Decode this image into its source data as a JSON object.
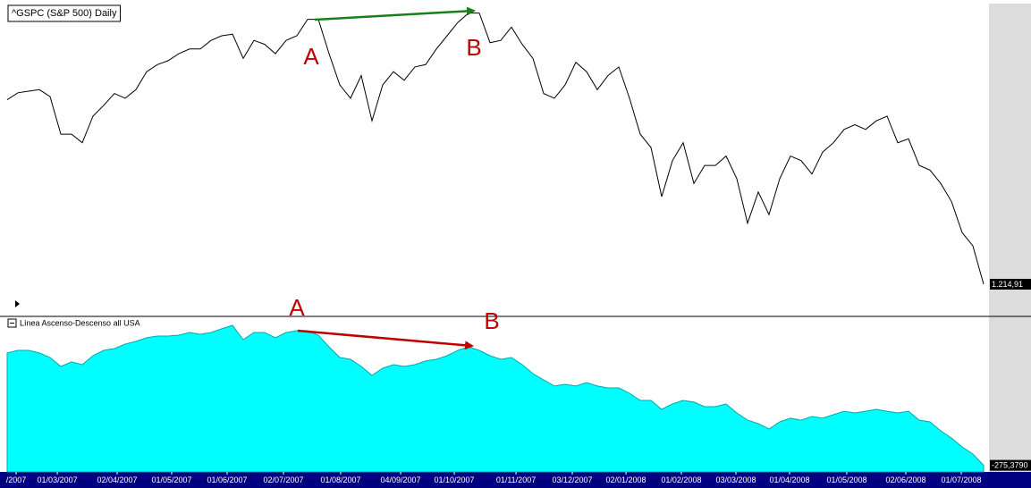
{
  "chart_data": [
    {
      "type": "line",
      "title": "^GSPC (S&P 500) Daily",
      "color": "#000000",
      "xlim": [
        -0.67,
        91.42
      ],
      "ylim": [
        1176,
        1573
      ],
      "values": [
        1451,
        1460,
        1462,
        1464,
        1455,
        1407,
        1407,
        1396,
        1430,
        1444,
        1459,
        1453,
        1464,
        1487,
        1496,
        1501,
        1510,
        1516,
        1516,
        1527,
        1533,
        1535,
        1504,
        1527,
        1522,
        1510,
        1527,
        1533,
        1554,
        1554,
        1510,
        1470,
        1453,
        1482,
        1424,
        1470,
        1487,
        1476,
        1493,
        1496,
        1516,
        1533,
        1550,
        1562,
        1562,
        1524,
        1527,
        1544,
        1522,
        1504,
        1459,
        1453,
        1470,
        1499,
        1487,
        1464,
        1482,
        1493,
        1453,
        1407,
        1390,
        1327,
        1373,
        1396,
        1344,
        1367,
        1367,
        1379,
        1350,
        1293,
        1333,
        1304,
        1350,
        1379,
        1373,
        1356,
        1384,
        1396,
        1413,
        1419,
        1413,
        1424,
        1430,
        1396,
        1401,
        1367,
        1361,
        1344,
        1321,
        1281,
        1264,
        1214.91
      ],
      "value_labels": [
        null,
        null,
        null,
        null,
        null,
        null,
        null,
        null,
        null,
        null,
        null,
        null,
        null,
        null,
        null,
        null,
        null,
        null,
        null,
        null,
        null,
        null,
        null,
        null,
        null,
        null,
        null,
        null,
        null,
        null,
        null,
        null,
        null,
        null,
        null,
        null,
        null,
        null,
        null,
        null,
        null,
        null,
        null,
        null,
        null,
        null,
        null,
        null,
        null,
        null,
        null,
        null,
        null,
        null,
        null,
        null,
        null,
        null,
        null,
        null,
        null,
        null,
        null,
        null,
        null,
        null,
        null,
        null,
        null,
        null,
        null,
        null,
        null,
        null,
        null,
        null,
        null,
        null,
        null,
        null,
        null,
        null,
        null,
        null,
        null,
        null,
        null,
        null,
        null,
        null,
        null,
        "1.214,91"
      ],
      "annotations": [
        {
          "text": "A",
          "color": "#c00000"
        },
        {
          "text": "B",
          "color": "#c00000"
        }
      ],
      "arrow_color": "#1a7f1a"
    },
    {
      "type": "area",
      "title": "Línea Ascenso-Descenso all USA",
      "color": "#00ffff",
      "xlim": [
        -0.67,
        91.42
      ],
      "ylim": [
        -800,
        11500
      ],
      "values": [
        8660,
        8870,
        8870,
        8660,
        8300,
        7590,
        7950,
        7730,
        8440,
        8870,
        9010,
        9370,
        9580,
        9870,
        10010,
        10010,
        10080,
        10290,
        10150,
        10290,
        10580,
        10860,
        9720,
        10290,
        10290,
        9870,
        10290,
        10430,
        10430,
        10080,
        9150,
        8300,
        8160,
        7590,
        6880,
        7450,
        7730,
        7590,
        7730,
        8020,
        8160,
        8440,
        8870,
        9150,
        8870,
        8440,
        8160,
        8300,
        7730,
        7020,
        6520,
        6030,
        6170,
        6030,
        6310,
        6030,
        5880,
        5880,
        5460,
        4890,
        4890,
        4180,
        4600,
        4890,
        4750,
        4390,
        4390,
        4600,
        3890,
        3320,
        3040,
        2610,
        3180,
        3470,
        3320,
        3610,
        3470,
        3750,
        4030,
        3890,
        4030,
        4180,
        4030,
        3890,
        4030,
        3320,
        3180,
        2470,
        1900,
        1190,
        620,
        -275.379
      ],
      "value_labels": [
        null,
        null,
        null,
        null,
        null,
        null,
        null,
        null,
        null,
        null,
        null,
        null,
        null,
        null,
        null,
        null,
        null,
        null,
        null,
        null,
        null,
        null,
        null,
        null,
        null,
        null,
        null,
        null,
        null,
        null,
        null,
        null,
        null,
        null,
        null,
        null,
        null,
        null,
        null,
        null,
        null,
        null,
        null,
        null,
        null,
        null,
        null,
        null,
        null,
        null,
        null,
        null,
        null,
        null,
        null,
        null,
        null,
        null,
        null,
        null,
        null,
        null,
        null,
        null,
        null,
        null,
        null,
        null,
        null,
        null,
        null,
        null,
        null,
        null,
        null,
        null,
        null,
        null,
        null,
        null,
        null,
        null,
        null,
        null,
        null,
        null,
        null,
        null,
        null,
        null,
        null,
        "-275,3790"
      ],
      "annotations": [
        {
          "text": "A",
          "color": "#c00000"
        },
        {
          "text": "B",
          "color": "#c00000"
        }
      ],
      "arrow_color": "#c00000",
      "xticks": [
        {
          "value": 0.83,
          "label": "/2007"
        },
        {
          "value": 4.67,
          "label": "01/03/2007"
        },
        {
          "value": 10.25,
          "label": "02/04/2007"
        },
        {
          "value": 15.33,
          "label": "01/05/2007"
        },
        {
          "value": 20.5,
          "label": "01/06/2007"
        },
        {
          "value": 25.75,
          "label": "02/07/2007"
        },
        {
          "value": 31.08,
          "label": "01/08/2007"
        },
        {
          "value": 36.67,
          "label": "04/09/2007"
        },
        {
          "value": 41.67,
          "label": "01/10/2007"
        },
        {
          "value": 47.42,
          "label": "01/11/2007"
        },
        {
          "value": 52.67,
          "label": "03/12/2007"
        },
        {
          "value": 57.67,
          "label": "02/01/2008"
        },
        {
          "value": 62.83,
          "label": "01/02/2008"
        },
        {
          "value": 67.92,
          "label": "03/03/2008"
        },
        {
          "value": 72.92,
          "label": "01/04/2008"
        },
        {
          "value": 78.25,
          "label": "01/05/2008"
        },
        {
          "value": 83.75,
          "label": "02/06/2008"
        },
        {
          "value": 88.92,
          "label": "01/07/2008"
        }
      ]
    }
  ]
}
